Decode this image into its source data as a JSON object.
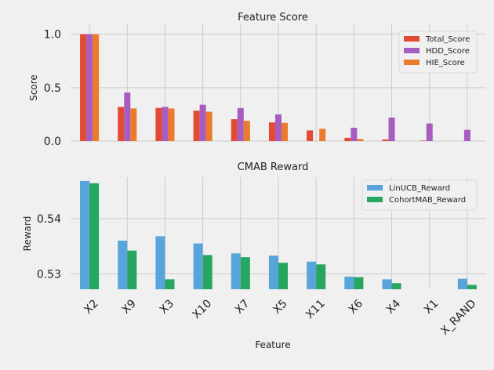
{
  "colors": {
    "background": "#f0f0f0",
    "grid": "#cbcbcb",
    "total_score": "#e24a33",
    "hdd_score": "#a75dbf",
    "hie_score": "#ec7a2c",
    "linucb_reward": "#58a5db",
    "cohortmab_reward": "#27a65f"
  },
  "chart_data": [
    {
      "type": "bar",
      "title": "Feature Score",
      "xlabel": "",
      "ylabel": "Score",
      "ylim": [
        0,
        1.1
      ],
      "yticks": [
        "0.0",
        "0.5",
        "1.0"
      ],
      "ytick_values": [
        0,
        0.5,
        1.0
      ],
      "grid": true,
      "legend_position": "top-right",
      "categories": [
        "X2",
        "X9",
        "X3",
        "X10",
        "X7",
        "X5",
        "X11",
        "X6",
        "X4",
        "X1",
        "X_RAND"
      ],
      "series": [
        {
          "name": "Total_Score",
          "values": [
            1.0,
            0.32,
            0.31,
            0.285,
            0.205,
            0.175,
            0.1,
            0.03,
            0.015,
            0.005,
            0.0
          ]
        },
        {
          "name": "HDD_Score",
          "values": [
            1.0,
            0.455,
            0.32,
            0.34,
            0.31,
            0.25,
            0.0,
            0.125,
            0.22,
            0.165,
            0.105
          ]
        },
        {
          "name": "HIE_Score",
          "values": [
            1.0,
            0.305,
            0.305,
            0.275,
            0.19,
            0.17,
            0.115,
            0.02,
            0.0,
            0.0,
            0.0
          ]
        }
      ]
    },
    {
      "type": "bar",
      "title": "CMAB Reward",
      "xlabel": "Feature",
      "ylabel": "Reward",
      "ylim": [
        0.5272,
        0.5475
      ],
      "yticks": [
        "0.53",
        "0.54"
      ],
      "ytick_values": [
        0.53,
        0.54
      ],
      "grid": true,
      "legend_position": "top-right",
      "categories": [
        "X2",
        "X9",
        "X3",
        "X10",
        "X7",
        "X5",
        "X11",
        "X6",
        "X4",
        "X1",
        "X_RAND"
      ],
      "series": [
        {
          "name": "LinUCB_Reward",
          "values": [
            0.5468,
            0.536,
            0.5368,
            0.5355,
            0.5337,
            0.5333,
            0.5322,
            0.5295,
            0.529,
            null,
            0.5291
          ]
        },
        {
          "name": "CohortMAB_Reward",
          "values": [
            0.5464,
            0.5342,
            0.529,
            0.5334,
            0.533,
            0.532,
            0.5317,
            0.5294,
            0.5283,
            null,
            0.528
          ]
        }
      ]
    }
  ]
}
